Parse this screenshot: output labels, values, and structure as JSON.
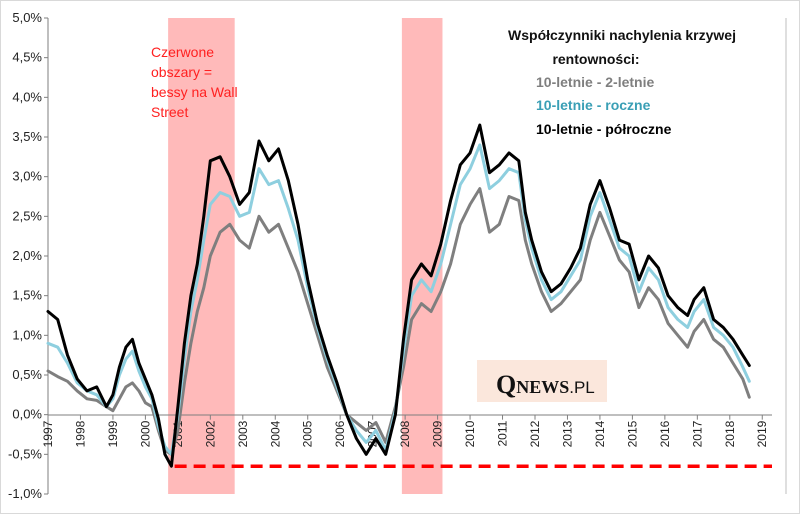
{
  "chart_data": {
    "type": "line",
    "title": "",
    "xlabel": "",
    "ylabel": "",
    "ylim": [
      -1.0,
      5.0
    ],
    "xlim": [
      1997.0,
      2019.3
    ],
    "grid": false,
    "y_ticks": [
      {
        "value": 5.0,
        "label": "5,0%"
      },
      {
        "value": 4.5,
        "label": "4,5%"
      },
      {
        "value": 4.0,
        "label": "4,0%"
      },
      {
        "value": 3.5,
        "label": "3,5%"
      },
      {
        "value": 3.0,
        "label": "3,0%"
      },
      {
        "value": 2.5,
        "label": "2,5%"
      },
      {
        "value": 2.0,
        "label": "2,0%"
      },
      {
        "value": 1.5,
        "label": "1,5%"
      },
      {
        "value": 1.0,
        "label": "1,0%"
      },
      {
        "value": 0.5,
        "label": "0,5%"
      },
      {
        "value": 0.0,
        "label": "0,0%"
      },
      {
        "value": -0.5,
        "label": "-0,5%"
      },
      {
        "value": -1.0,
        "label": "-1,0%"
      }
    ],
    "x_ticks": [
      "1997",
      "1998",
      "1999",
      "2000",
      "2001",
      "2002",
      "2003",
      "2004",
      "2005",
      "2006",
      "2007",
      "2008",
      "2009",
      "2010",
      "2011",
      "2012",
      "2013",
      "2014",
      "2015",
      "2016",
      "2017",
      "2018",
      "2019"
    ],
    "recessions": [
      {
        "start": 2000.7,
        "end": 2002.75
      },
      {
        "start": 2007.9,
        "end": 2009.15
      }
    ],
    "threshold": {
      "value": -0.65,
      "from": 2000.9,
      "to": 2019.3,
      "color": "#ff0000"
    },
    "legend": {
      "title_line1": "Współczynniki nachylenia krzywej",
      "title_line2": "rentowności:",
      "placement": "top-right"
    },
    "annotation": {
      "lines": [
        "Czerwone",
        "obszary =",
        "bessy na Wall",
        "Street"
      ],
      "color": "#ff2020"
    },
    "logo": {
      "q": "Q",
      "news": "NEWS",
      "pl": ".PL"
    },
    "series": [
      {
        "name": "10-letnie - 2-letnie",
        "color": "#7f7f7f",
        "points": [
          [
            1997.0,
            0.55
          ],
          [
            1997.3,
            0.48
          ],
          [
            1997.6,
            0.42
          ],
          [
            1997.9,
            0.3
          ],
          [
            1998.2,
            0.2
          ],
          [
            1998.5,
            0.18
          ],
          [
            1998.8,
            0.1
          ],
          [
            1999.0,
            0.05
          ],
          [
            1999.2,
            0.2
          ],
          [
            1999.4,
            0.35
          ],
          [
            1999.6,
            0.4
          ],
          [
            1999.8,
            0.3
          ],
          [
            2000.0,
            0.15
          ],
          [
            2000.2,
            0.1
          ],
          [
            2000.4,
            -0.2
          ],
          [
            2000.6,
            -0.45
          ],
          [
            2000.8,
            -0.5
          ],
          [
            2001.0,
            -0.2
          ],
          [
            2001.2,
            0.4
          ],
          [
            2001.4,
            0.9
          ],
          [
            2001.6,
            1.3
          ],
          [
            2001.8,
            1.6
          ],
          [
            2002.0,
            2.0
          ],
          [
            2002.3,
            2.3
          ],
          [
            2002.6,
            2.4
          ],
          [
            2002.9,
            2.2
          ],
          [
            2003.2,
            2.1
          ],
          [
            2003.5,
            2.5
          ],
          [
            2003.8,
            2.3
          ],
          [
            2004.1,
            2.4
          ],
          [
            2004.4,
            2.1
          ],
          [
            2004.7,
            1.8
          ],
          [
            2005.0,
            1.4
          ],
          [
            2005.3,
            1.0
          ],
          [
            2005.6,
            0.6
          ],
          [
            2005.9,
            0.3
          ],
          [
            2006.2,
            0.0
          ],
          [
            2006.5,
            -0.1
          ],
          [
            2006.8,
            -0.2
          ],
          [
            2007.1,
            -0.1
          ],
          [
            2007.4,
            -0.35
          ],
          [
            2007.7,
            0.1
          ],
          [
            2007.95,
            0.6
          ],
          [
            2008.2,
            1.2
          ],
          [
            2008.5,
            1.4
          ],
          [
            2008.8,
            1.3
          ],
          [
            2009.1,
            1.55
          ],
          [
            2009.4,
            1.9
          ],
          [
            2009.7,
            2.4
          ],
          [
            2010.0,
            2.65
          ],
          [
            2010.3,
            2.85
          ],
          [
            2010.6,
            2.3
          ],
          [
            2010.9,
            2.4
          ],
          [
            2011.2,
            2.75
          ],
          [
            2011.5,
            2.7
          ],
          [
            2011.7,
            2.2
          ],
          [
            2011.9,
            1.9
          ],
          [
            2012.2,
            1.55
          ],
          [
            2012.5,
            1.3
          ],
          [
            2012.8,
            1.4
          ],
          [
            2013.1,
            1.55
          ],
          [
            2013.4,
            1.7
          ],
          [
            2013.7,
            2.2
          ],
          [
            2014.0,
            2.55
          ],
          [
            2014.3,
            2.25
          ],
          [
            2014.6,
            1.95
          ],
          [
            2014.9,
            1.8
          ],
          [
            2015.2,
            1.35
          ],
          [
            2015.5,
            1.6
          ],
          [
            2015.8,
            1.45
          ],
          [
            2016.1,
            1.15
          ],
          [
            2016.4,
            1.0
          ],
          [
            2016.7,
            0.85
          ],
          [
            2016.9,
            1.05
          ],
          [
            2017.2,
            1.2
          ],
          [
            2017.5,
            0.95
          ],
          [
            2017.8,
            0.85
          ],
          [
            2018.1,
            0.65
          ],
          [
            2018.4,
            0.45
          ],
          [
            2018.6,
            0.22
          ]
        ]
      },
      {
        "name": "10-letnie - roczne",
        "color": "#8ecfdf",
        "points": [
          [
            1997.0,
            0.9
          ],
          [
            1997.3,
            0.85
          ],
          [
            1997.6,
            0.65
          ],
          [
            1997.9,
            0.4
          ],
          [
            1998.2,
            0.3
          ],
          [
            1998.5,
            0.25
          ],
          [
            1998.8,
            0.1
          ],
          [
            1999.0,
            0.2
          ],
          [
            1999.2,
            0.5
          ],
          [
            1999.4,
            0.7
          ],
          [
            1999.6,
            0.8
          ],
          [
            1999.8,
            0.55
          ],
          [
            2000.0,
            0.35
          ],
          [
            2000.2,
            0.2
          ],
          [
            2000.4,
            -0.15
          ],
          [
            2000.6,
            -0.4
          ],
          [
            2000.8,
            -0.5
          ],
          [
            2001.0,
            0.0
          ],
          [
            2001.2,
            0.7
          ],
          [
            2001.4,
            1.3
          ],
          [
            2001.6,
            1.7
          ],
          [
            2001.8,
            2.2
          ],
          [
            2002.0,
            2.65
          ],
          [
            2002.3,
            2.8
          ],
          [
            2002.6,
            2.75
          ],
          [
            2002.9,
            2.5
          ],
          [
            2003.2,
            2.55
          ],
          [
            2003.5,
            3.1
          ],
          [
            2003.8,
            2.9
          ],
          [
            2004.1,
            2.95
          ],
          [
            2004.4,
            2.6
          ],
          [
            2004.7,
            2.2
          ],
          [
            2005.0,
            1.6
          ],
          [
            2005.3,
            1.1
          ],
          [
            2005.6,
            0.7
          ],
          [
            2005.9,
            0.35
          ],
          [
            2006.2,
            0.0
          ],
          [
            2006.5,
            -0.2
          ],
          [
            2006.8,
            -0.35
          ],
          [
            2007.1,
            -0.2
          ],
          [
            2007.4,
            -0.45
          ],
          [
            2007.7,
            0.05
          ],
          [
            2007.95,
            0.8
          ],
          [
            2008.2,
            1.5
          ],
          [
            2008.5,
            1.7
          ],
          [
            2008.8,
            1.55
          ],
          [
            2009.1,
            1.9
          ],
          [
            2009.4,
            2.4
          ],
          [
            2009.7,
            2.9
          ],
          [
            2010.0,
            3.1
          ],
          [
            2010.3,
            3.4
          ],
          [
            2010.6,
            2.85
          ],
          [
            2010.9,
            2.95
          ],
          [
            2011.2,
            3.1
          ],
          [
            2011.5,
            3.05
          ],
          [
            2011.7,
            2.45
          ],
          [
            2011.9,
            2.1
          ],
          [
            2012.2,
            1.7
          ],
          [
            2012.5,
            1.45
          ],
          [
            2012.8,
            1.55
          ],
          [
            2013.1,
            1.75
          ],
          [
            2013.4,
            1.95
          ],
          [
            2013.7,
            2.5
          ],
          [
            2014.0,
            2.8
          ],
          [
            2014.3,
            2.45
          ],
          [
            2014.6,
            2.1
          ],
          [
            2014.9,
            2.0
          ],
          [
            2015.2,
            1.55
          ],
          [
            2015.5,
            1.85
          ],
          [
            2015.8,
            1.7
          ],
          [
            2016.1,
            1.35
          ],
          [
            2016.4,
            1.2
          ],
          [
            2016.7,
            1.1
          ],
          [
            2016.9,
            1.3
          ],
          [
            2017.2,
            1.45
          ],
          [
            2017.5,
            1.1
          ],
          [
            2017.8,
            1.0
          ],
          [
            2018.1,
            0.85
          ],
          [
            2018.4,
            0.6
          ],
          [
            2018.6,
            0.42
          ]
        ]
      },
      {
        "name": "10-letnie - półroczne",
        "color": "#000000",
        "points": [
          [
            1997.0,
            1.3
          ],
          [
            1997.3,
            1.2
          ],
          [
            1997.6,
            0.75
          ],
          [
            1997.9,
            0.45
          ],
          [
            1998.2,
            0.3
          ],
          [
            1998.5,
            0.35
          ],
          [
            1998.8,
            0.1
          ],
          [
            1999.0,
            0.25
          ],
          [
            1999.2,
            0.6
          ],
          [
            1999.4,
            0.85
          ],
          [
            1999.6,
            0.95
          ],
          [
            1999.8,
            0.65
          ],
          [
            2000.0,
            0.45
          ],
          [
            2000.2,
            0.25
          ],
          [
            2000.4,
            -0.05
          ],
          [
            2000.6,
            -0.5
          ],
          [
            2000.8,
            -0.65
          ],
          [
            2001.0,
            0.1
          ],
          [
            2001.2,
            0.9
          ],
          [
            2001.4,
            1.5
          ],
          [
            2001.6,
            1.9
          ],
          [
            2001.8,
            2.5
          ],
          [
            2002.0,
            3.2
          ],
          [
            2002.3,
            3.25
          ],
          [
            2002.6,
            3.0
          ],
          [
            2002.9,
            2.65
          ],
          [
            2003.2,
            2.8
          ],
          [
            2003.5,
            3.45
          ],
          [
            2003.8,
            3.2
          ],
          [
            2004.1,
            3.35
          ],
          [
            2004.4,
            2.95
          ],
          [
            2004.7,
            2.4
          ],
          [
            2005.0,
            1.7
          ],
          [
            2005.3,
            1.15
          ],
          [
            2005.6,
            0.75
          ],
          [
            2005.9,
            0.4
          ],
          [
            2006.2,
            0.0
          ],
          [
            2006.5,
            -0.3
          ],
          [
            2006.8,
            -0.5
          ],
          [
            2007.1,
            -0.3
          ],
          [
            2007.4,
            -0.5
          ],
          [
            2007.7,
            0.0
          ],
          [
            2007.95,
            0.95
          ],
          [
            2008.2,
            1.7
          ],
          [
            2008.5,
            1.9
          ],
          [
            2008.8,
            1.75
          ],
          [
            2009.1,
            2.15
          ],
          [
            2009.4,
            2.7
          ],
          [
            2009.7,
            3.15
          ],
          [
            2010.0,
            3.3
          ],
          [
            2010.3,
            3.65
          ],
          [
            2010.6,
            3.05
          ],
          [
            2010.9,
            3.15
          ],
          [
            2011.2,
            3.3
          ],
          [
            2011.5,
            3.2
          ],
          [
            2011.7,
            2.55
          ],
          [
            2011.9,
            2.2
          ],
          [
            2012.2,
            1.8
          ],
          [
            2012.5,
            1.55
          ],
          [
            2012.8,
            1.65
          ],
          [
            2013.1,
            1.85
          ],
          [
            2013.4,
            2.1
          ],
          [
            2013.7,
            2.65
          ],
          [
            2014.0,
            2.95
          ],
          [
            2014.3,
            2.6
          ],
          [
            2014.6,
            2.2
          ],
          [
            2014.9,
            2.15
          ],
          [
            2015.2,
            1.7
          ],
          [
            2015.5,
            2.0
          ],
          [
            2015.8,
            1.85
          ],
          [
            2016.1,
            1.5
          ],
          [
            2016.4,
            1.35
          ],
          [
            2016.7,
            1.25
          ],
          [
            2016.9,
            1.45
          ],
          [
            2017.2,
            1.6
          ],
          [
            2017.5,
            1.2
          ],
          [
            2017.8,
            1.1
          ],
          [
            2018.1,
            0.95
          ],
          [
            2018.4,
            0.75
          ],
          [
            2018.6,
            0.62
          ]
        ]
      }
    ]
  }
}
